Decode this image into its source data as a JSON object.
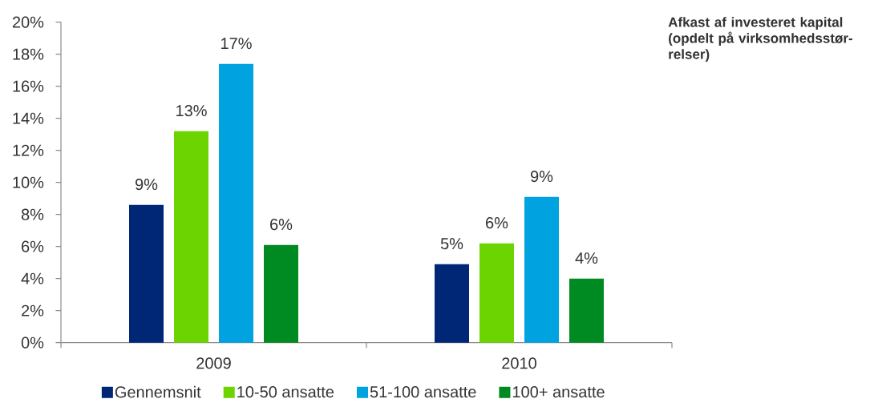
{
  "chart_data": {
    "type": "bar",
    "title": "Afkast af investeret kapital (opdelt på virksomhedsstør-relser)",
    "categories": [
      "2009",
      "2010"
    ],
    "series": [
      {
        "name": "Gennemsnit",
        "color": "#002776",
        "values": [
          8.6,
          4.9
        ],
        "value_labels": [
          "9%",
          "5%"
        ]
      },
      {
        "name": "10-50 ansatte",
        "color": "#6cd400",
        "values": [
          13.2,
          6.2
        ],
        "value_labels": [
          "13%",
          "6%"
        ]
      },
      {
        "name": "51-100 ansatte",
        "color": "#00a3e0",
        "values": [
          17.4,
          9.1
        ],
        "value_labels": [
          "17%",
          "9%"
        ]
      },
      {
        "name": "100+ ansatte",
        "color": "#008a22",
        "values": [
          6.1,
          4.0
        ],
        "value_labels": [
          "6%",
          "4%"
        ]
      }
    ],
    "ylim": [
      0,
      20
    ],
    "yticks": [
      {
        "value": 0,
        "label": "0%"
      },
      {
        "value": 2,
        "label": "2%"
      },
      {
        "value": 4,
        "label": "4%"
      },
      {
        "value": 6,
        "label": "6%"
      },
      {
        "value": 8,
        "label": "8%"
      },
      {
        "value": 10,
        "label": "10%"
      },
      {
        "value": 12,
        "label": "12%"
      },
      {
        "value": 14,
        "label": "14%"
      },
      {
        "value": 16,
        "label": "16%"
      },
      {
        "value": 18,
        "label": "18%"
      },
      {
        "value": 20,
        "label": "20%"
      }
    ],
    "legend": "bottom"
  }
}
